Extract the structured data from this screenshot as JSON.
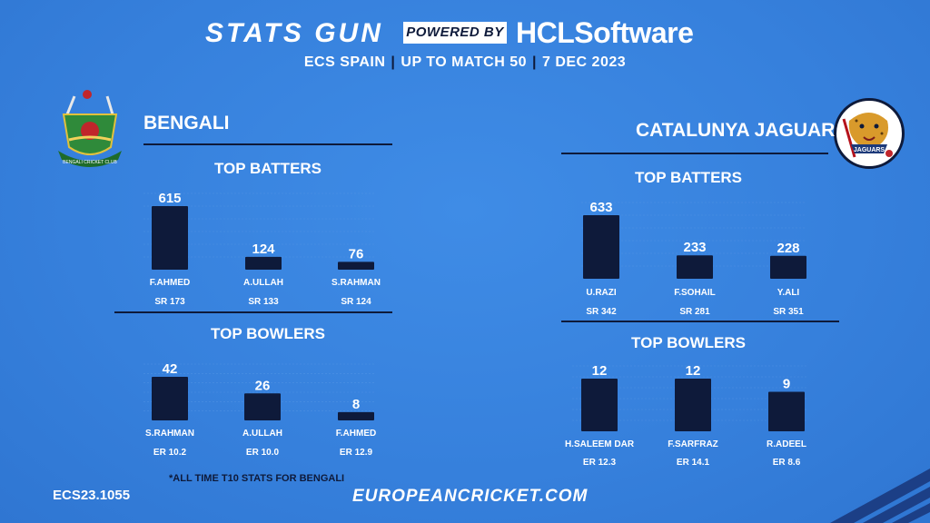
{
  "header": {
    "brand_left": "STATS GUN",
    "powered_by": "POWERED BY",
    "brand_right": "HCLSoftware",
    "subtitle_parts": [
      "ECS SPAIN",
      "UP TO MATCH 50",
      "7 DEC 2023"
    ],
    "separator": "|"
  },
  "colors": {
    "background": "#3680dc",
    "bar": "#0e1a3a",
    "text": "#ffffff",
    "accent_dark": "#0e1a3a",
    "grid": "#5c9ae6"
  },
  "teams": {
    "left": {
      "name": "BENGALI",
      "logo_icon": "bengali-cricket-club-logo",
      "logo_text": "BENGALI CRICKET CLUB"
    },
    "right": {
      "name": "CATALUNYA JAGUAR",
      "logo_icon": "jaguars-logo",
      "logo_text": "JAGUARS"
    }
  },
  "chart_data": [
    {
      "type": "bar",
      "title": "TOP BATTERS",
      "team": "BENGALI",
      "categories": [
        "F.AHMED",
        "A.ULLAH",
        "S.RAHMAN"
      ],
      "values": [
        615,
        124,
        76
      ],
      "sublabels": [
        "SR 173",
        "SR 133",
        "SR 124"
      ]
    },
    {
      "type": "bar",
      "title": "TOP BOWLERS",
      "team": "BENGALI",
      "categories": [
        "S.RAHMAN",
        "A.ULLAH",
        "F.AHMED"
      ],
      "values": [
        42,
        26,
        8
      ],
      "sublabels": [
        "ER 10.2",
        "ER 10.0",
        "ER 12.9"
      ]
    },
    {
      "type": "bar",
      "title": "TOP BATTERS",
      "team": "CATALUNYA JAGUAR",
      "categories": [
        "U.RAZI",
        "F.SOHAIL",
        "Y.ALI"
      ],
      "values": [
        633,
        233,
        228
      ],
      "sublabels": [
        "SR 342",
        "SR 281",
        "SR 351"
      ]
    },
    {
      "type": "bar",
      "title": "TOP BOWLERS",
      "team": "CATALUNYA JAGUAR",
      "categories": [
        "H.SALEEM DAR",
        "F.SARFRAZ",
        "R.ADEEL"
      ],
      "values": [
        12,
        12,
        9
      ],
      "sublabels": [
        "ER 12.3",
        "ER 14.1",
        "ER 8.6"
      ]
    }
  ],
  "footer": {
    "footnote": "*ALL TIME T10 STATS FOR BENGALI",
    "code": "ECS23.1055",
    "website": "EUROPEANCRICKET.COM"
  }
}
